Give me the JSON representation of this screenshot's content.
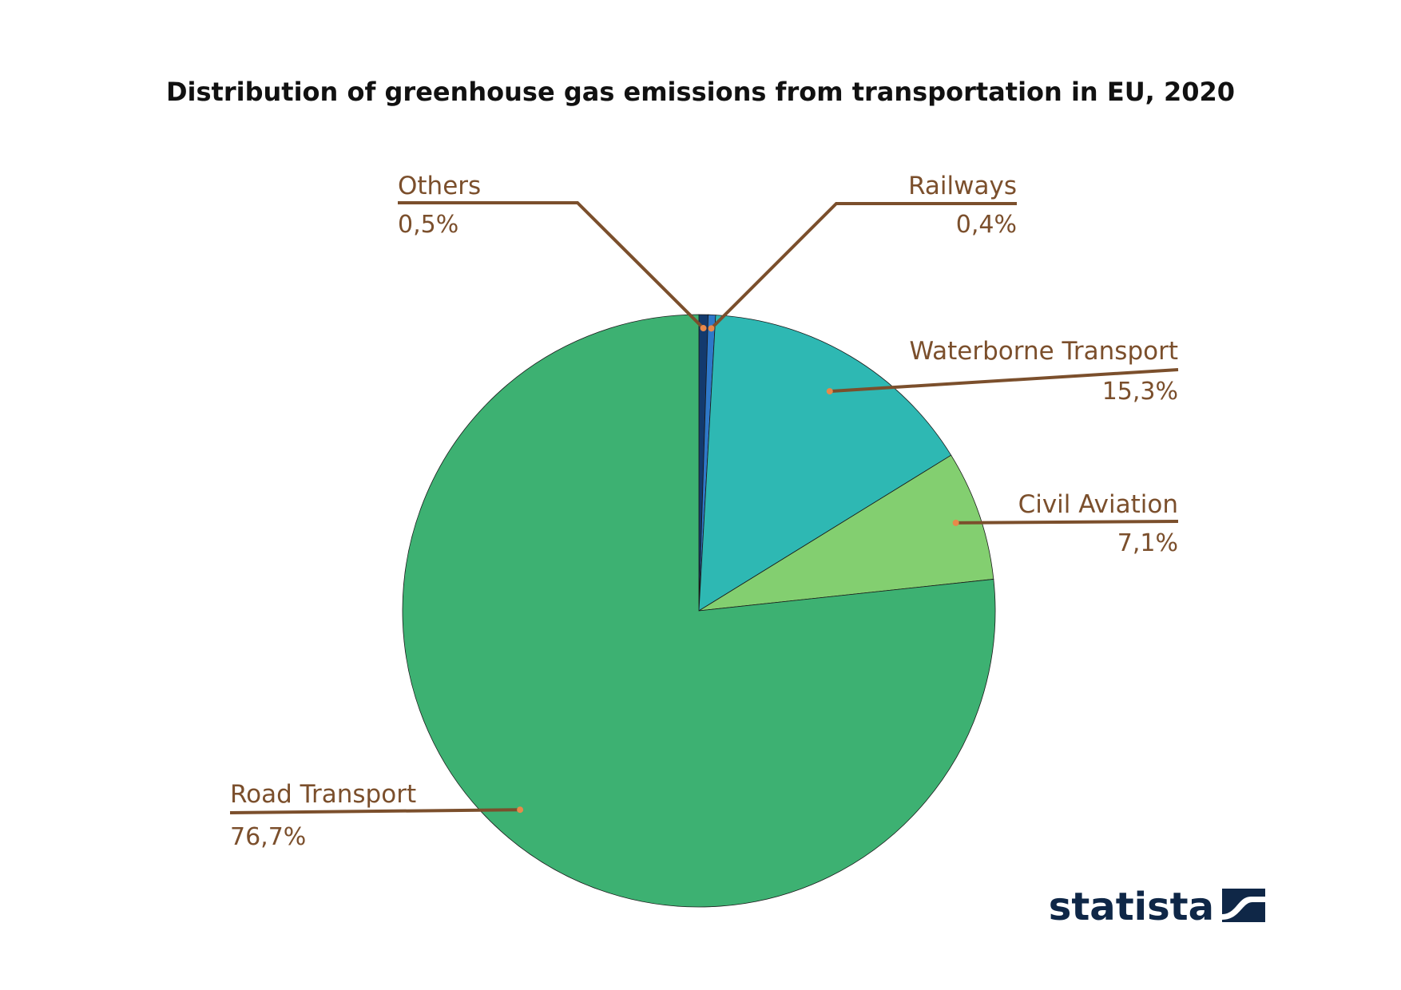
{
  "chart_data": {
    "type": "pie",
    "title": "Distribution of greenhouse gas emissions from transportation in EU, 2020",
    "slices": [
      {
        "name": "Others",
        "value": 0.5,
        "display": "0,5%",
        "color": "#133a6e"
      },
      {
        "name": "Railways",
        "value": 0.4,
        "display": "0,4%",
        "color": "#2e78c9"
      },
      {
        "name": "Waterborne Transport",
        "value": 15.3,
        "display": "15,3%",
        "color": "#2eb8b3"
      },
      {
        "name": "Civil Aviation",
        "value": 7.1,
        "display": "7,1%",
        "color": "#83cf70"
      },
      {
        "name": "Road Transport",
        "value": 76.7,
        "display": "76,7%",
        "color": "#3db172"
      }
    ],
    "start_angle_deg": 0,
    "direction": "clockwise",
    "legend": "none",
    "label_color": "#7b4f2c"
  },
  "brand": {
    "logo_text": "statista",
    "logo_color": "#0f2747"
  }
}
